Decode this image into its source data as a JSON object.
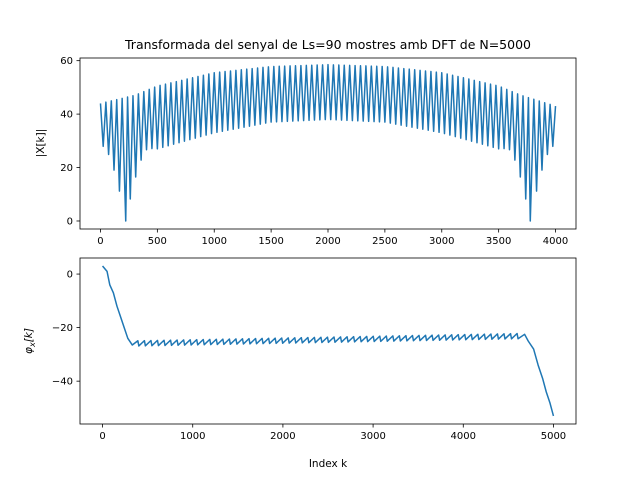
{
  "figure": {
    "title": "Transformada del senyal de Ls=90 mostres amb DFT de N=5000"
  },
  "colors": {
    "series": "#1f77b4",
    "axes": "#000000",
    "background": "#ffffff"
  },
  "chart_data": [
    {
      "type": "line",
      "title": "Transformada del senyal de Ls=90 mostres amb DFT de N=5000",
      "xlabel": "",
      "ylabel": "|X[k]|",
      "xlim": [
        -180,
        4180
      ],
      "ylim": [
        -3,
        61
      ],
      "grid": false,
      "xticks": [
        0,
        500,
        1000,
        1500,
        2000,
        2500,
        3000,
        3500,
        4000
      ],
      "yticks": [
        0,
        20,
        40,
        60
      ],
      "xtick_labels": [
        "0",
        "500",
        "1000",
        "1500",
        "2000",
        "2500",
        "3000",
        "3500",
        "4000"
      ],
      "ytick_labels": [
        "0",
        "20",
        "40",
        "60"
      ],
      "series": [
        {
          "description": "oscillating magnitude; upper envelope rises from about 44 at k=0 to about 58.5 near k=2000 and back to about 43 at k=4000; lower envelope from about 28 at the edges to about 38 at the center, dropping to about 0 at k=222 and k=3778",
          "x_start": 0,
          "x_end": 4000,
          "cycles": 84,
          "upper_envelope": [
            [
              0,
              44
            ],
            [
              300,
              47
            ],
            [
              500,
              50.5
            ],
            [
              1000,
              55.5
            ],
            [
              1500,
              57.8
            ],
            [
              2000,
              58.5
            ],
            [
              2500,
              57.8
            ],
            [
              3000,
              55.5
            ],
            [
              3500,
              50.5
            ],
            [
              3700,
              47
            ],
            [
              4000,
              43
            ]
          ],
          "lower_envelope": [
            [
              0,
              28
            ],
            [
              500,
              27
            ],
            [
              1000,
              33
            ],
            [
              1500,
              37
            ],
            [
              2000,
              38
            ],
            [
              2500,
              37
            ],
            [
              3000,
              33
            ],
            [
              3500,
              27
            ],
            [
              4000,
              28
            ]
          ],
          "dips": [
            [
              222,
              0
            ],
            [
              3778,
              0
            ]
          ]
        }
      ]
    },
    {
      "type": "line",
      "title": "",
      "xlabel": "Index k",
      "ylabel": "φ_x[k]",
      "ylabel_main": "φ",
      "ylabel_sub": "x",
      "ylabel_rest": "[k]",
      "xlim": [
        -250,
        5250
      ],
      "ylim": [
        -56,
        6
      ],
      "grid": false,
      "xticks": [
        0,
        1000,
        2000,
        3000,
        4000,
        5000
      ],
      "yticks": [
        0,
        -20,
        -40
      ],
      "xtick_labels": [
        "0",
        "1000",
        "2000",
        "3000",
        "4000",
        "5000"
      ],
      "ytick_labels": [
        "0",
        "−20",
        "−40"
      ],
      "series": [
        {
          "description": "phase: falls from about 3 at k=0 to about -26 at k=330, then a small sawtooth (amplitude about 1.5) slowly rising to about -23 at k=4680, then falls steeply to about -53 at k=5000",
          "start_segment": [
            [
              0,
              3
            ],
            [
              50,
              1
            ],
            [
              80,
              -4
            ],
            [
              120,
              -7
            ],
            [
              160,
              -12
            ],
            [
              200,
              -16
            ],
            [
              240,
              -20
            ],
            [
              280,
              -24
            ],
            [
              330,
              -26.5
            ]
          ],
          "plateau": {
            "x_start": 330,
            "x_end": 4680,
            "y_start": -26,
            "y_end": -23.2,
            "sawtooth_amplitude": 1.5,
            "teeth": 60
          },
          "end_segment": [
            [
              4680,
              -22.5
            ],
            [
              4720,
              -25
            ],
            [
              4780,
              -28
            ],
            [
              4830,
              -34
            ],
            [
              4880,
              -39
            ],
            [
              4920,
              -44
            ],
            [
              4960,
              -48
            ],
            [
              5000,
              -53
            ]
          ]
        }
      ]
    }
  ]
}
